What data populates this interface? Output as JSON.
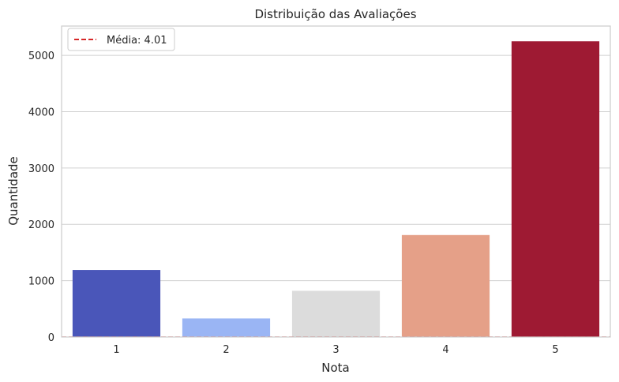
{
  "chart_data": {
    "type": "bar",
    "title": "Distribuição das Avaliações",
    "xlabel": "Nota",
    "ylabel": "Quantidade",
    "categories": [
      "1",
      "2",
      "3",
      "4",
      "5"
    ],
    "values": [
      1190,
      330,
      820,
      1810,
      5250
    ],
    "bar_colors": [
      "#4a56b9",
      "#9ab5f4",
      "#dcdcdc",
      "#e5a088",
      "#9e1a33"
    ],
    "ylim": [
      0,
      5520
    ],
    "yticks": [
      0,
      1000,
      2000,
      3000,
      4000,
      5000
    ],
    "grid": "horizontal",
    "mean_line": {
      "value": 4.01,
      "label": "Média: 4.01",
      "color": "#d62728",
      "style": "dashed"
    },
    "legend": {
      "placement": "top-left",
      "entries": [
        "Média: 4.01"
      ]
    }
  }
}
